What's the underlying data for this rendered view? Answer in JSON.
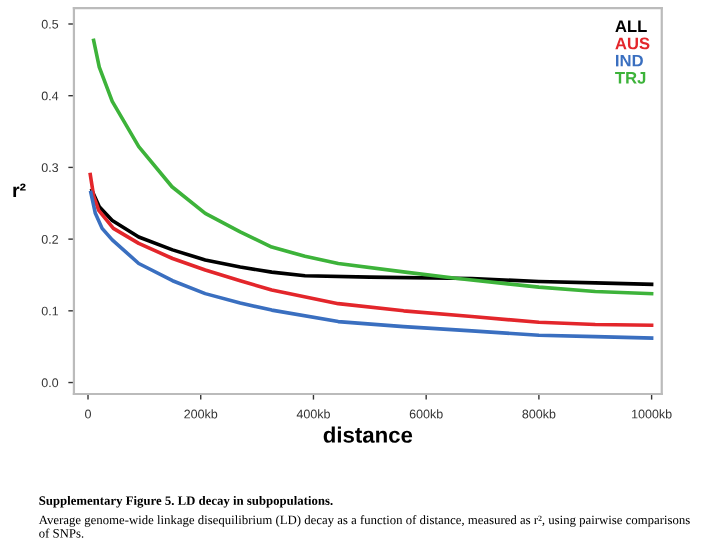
{
  "chart_data": {
    "type": "line",
    "xlabel": "distance",
    "ylabel": "r²",
    "xlim": [
      -25,
      1018
    ],
    "ylim": [
      -0.016,
      0.522
    ],
    "xticks": [
      {
        "value": 0,
        "label": "0"
      },
      {
        "value": 200,
        "label": "200kb"
      },
      {
        "value": 400,
        "label": "400kb"
      },
      {
        "value": 600,
        "label": "600kb"
      },
      {
        "value": 800,
        "label": "800kb"
      },
      {
        "value": 1000,
        "label": "1000kb"
      }
    ],
    "yticks": [
      {
        "value": 0,
        "label": "0.0"
      },
      {
        "value": 0.1,
        "label": "0.1"
      },
      {
        "value": 0.2,
        "label": "0.2"
      },
      {
        "value": 0.3,
        "label": "0.3"
      },
      {
        "value": 0.4,
        "label": "0.4"
      },
      {
        "value": 0.5,
        "label": "0.5"
      }
    ],
    "series": [
      {
        "name": "ALL",
        "color": "#000000",
        "x": [
          7,
          20,
          43,
          90,
          150,
          208,
          270,
          326,
          385,
          500,
          681,
          800,
          900,
          1000
        ],
        "values": [
          0.268,
          0.245,
          0.226,
          0.203,
          0.185,
          0.171,
          0.161,
          0.154,
          0.149,
          0.147,
          0.145,
          0.141,
          0.139,
          0.137
        ]
      },
      {
        "name": "AUS",
        "color": "#e3262b",
        "x": [
          4,
          10,
          19,
          45,
          90,
          150,
          208,
          270,
          326,
          444,
          560,
          681,
          800,
          900,
          1000
        ],
        "values": [
          0.29,
          0.26,
          0.24,
          0.215,
          0.194,
          0.173,
          0.157,
          0.142,
          0.129,
          0.11,
          0.1,
          0.092,
          0.084,
          0.081,
          0.08
        ]
      },
      {
        "name": "IND",
        "color": "#3a6fc0",
        "x": [
          5,
          13,
          25,
          43,
          90,
          150,
          208,
          270,
          326,
          444,
          560,
          681,
          800,
          900,
          1000
        ],
        "values": [
          0.265,
          0.236,
          0.215,
          0.199,
          0.166,
          0.142,
          0.124,
          0.111,
          0.101,
          0.085,
          0.078,
          0.072,
          0.066,
          0.064,
          0.062
        ]
      },
      {
        "name": "TRJ",
        "color": "#3db33a",
        "x": [
          10,
          20,
          43,
          90,
          149,
          208,
          270,
          326,
          385,
          444,
          563,
          656,
          800,
          900,
          1000
        ],
        "values": [
          0.477,
          0.44,
          0.392,
          0.329,
          0.273,
          0.236,
          0.21,
          0.189,
          0.176,
          0.166,
          0.154,
          0.145,
          0.133,
          0.127,
          0.124
        ]
      }
    ],
    "legend": "top right",
    "grid": false,
    "marker": "none",
    "line_style": "solid",
    "annotations": [
      "Supplementary Figure 5. LD decay in subpopulations.",
      "Average genome-wide linkage disequilibrium (LD) decay as a function of distance, measured as r², using pairwise comparisons of SNPs."
    ]
  }
}
